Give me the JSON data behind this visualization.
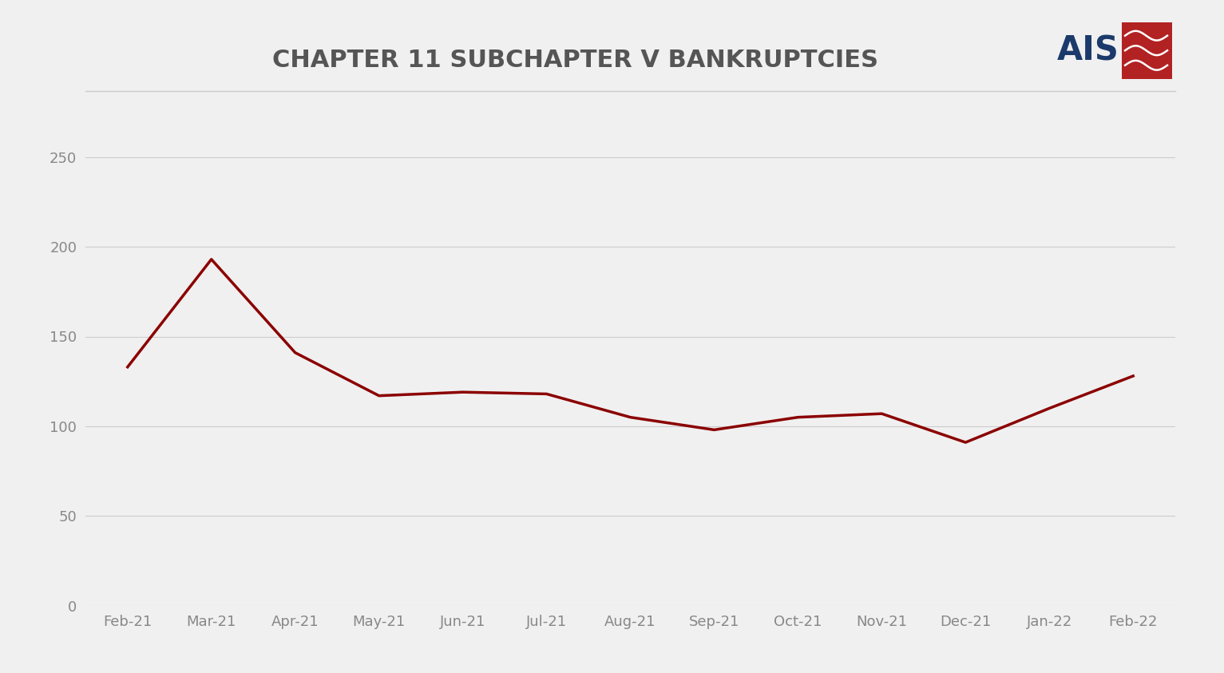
{
  "title": "CHAPTER 11 SUBCHAPTER V BANKRUPTCIES",
  "categories": [
    "Feb-21",
    "Mar-21",
    "Apr-21",
    "May-21",
    "Jun-21",
    "Jul-21",
    "Aug-21",
    "Sep-21",
    "Oct-21",
    "Nov-21",
    "Dec-21",
    "Jan-22",
    "Feb-22"
  ],
  "values": [
    133,
    193,
    141,
    117,
    119,
    118,
    105,
    98,
    105,
    107,
    91,
    110,
    128
  ],
  "line_color": "#8B0000",
  "background_color": "#F0F0F0",
  "title_color": "#555555",
  "tick_color": "#888888",
  "grid_color": "#CCCCCC",
  "ylim": [
    0,
    270
  ],
  "yticks": [
    0,
    50,
    100,
    150,
    200,
    250
  ],
  "title_fontsize": 22,
  "tick_fontsize": 13,
  "line_width": 2.5,
  "logo_ais_color": "#1B3A6B",
  "logo_box_color": "#B22222"
}
